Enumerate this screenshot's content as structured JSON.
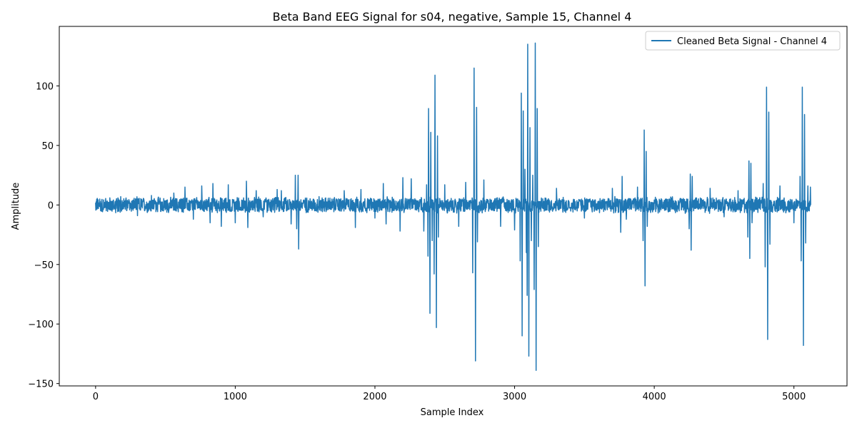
{
  "chart_data": {
    "type": "line",
    "title": "Beta Band EEG Signal for s04, negative, Sample 15, Channel 4",
    "xlabel": "Sample Index",
    "ylabel": "Amplitude",
    "xlim": [
      -260,
      5380
    ],
    "ylim": [
      -152,
      150
    ],
    "xticks": [
      0,
      1000,
      2000,
      3000,
      4000,
      5000
    ],
    "yticks": [
      -150,
      -100,
      -50,
      0,
      50,
      100
    ],
    "grid": false,
    "legend_position": "upper right",
    "series": [
      {
        "name": "Cleaned Beta Signal - Channel 4",
        "color": "#1f77b4",
        "n_samples": 5120,
        "baseline_amplitude": 6,
        "events": [
          {
            "x": 20,
            "y": -3
          },
          {
            "x": 30,
            "y": 5
          },
          {
            "x": 100,
            "y": -4
          },
          {
            "x": 180,
            "y": 7
          },
          {
            "x": 300,
            "y": -9
          },
          {
            "x": 400,
            "y": 8
          },
          {
            "x": 560,
            "y": 10
          },
          {
            "x": 640,
            "y": 15
          },
          {
            "x": 700,
            "y": -12
          },
          {
            "x": 760,
            "y": 16
          },
          {
            "x": 820,
            "y": -15
          },
          {
            "x": 840,
            "y": 18
          },
          {
            "x": 900,
            "y": -18
          },
          {
            "x": 950,
            "y": 17
          },
          {
            "x": 1000,
            "y": -15
          },
          {
            "x": 1080,
            "y": 20
          },
          {
            "x": 1090,
            "y": -19
          },
          {
            "x": 1150,
            "y": 12
          },
          {
            "x": 1200,
            "y": -10
          },
          {
            "x": 1300,
            "y": 13
          },
          {
            "x": 1330,
            "y": 12
          },
          {
            "x": 1400,
            "y": -16
          },
          {
            "x": 1430,
            "y": 25
          },
          {
            "x": 1440,
            "y": -20
          },
          {
            "x": 1450,
            "y": 25
          },
          {
            "x": 1455,
            "y": -37
          },
          {
            "x": 1600,
            "y": 7
          },
          {
            "x": 1780,
            "y": 12
          },
          {
            "x": 1860,
            "y": -19
          },
          {
            "x": 1900,
            "y": 13
          },
          {
            "x": 2000,
            "y": -11
          },
          {
            "x": 2060,
            "y": 18
          },
          {
            "x": 2080,
            "y": -16
          },
          {
            "x": 2180,
            "y": -22
          },
          {
            "x": 2200,
            "y": 23
          },
          {
            "x": 2260,
            "y": 22
          },
          {
            "x": 2350,
            "y": -22
          },
          {
            "x": 2370,
            "y": 17
          },
          {
            "x": 2380,
            "y": -43
          },
          {
            "x": 2385,
            "y": 81
          },
          {
            "x": 2395,
            "y": -91
          },
          {
            "x": 2400,
            "y": 61
          },
          {
            "x": 2410,
            "y": -30
          },
          {
            "x": 2425,
            "y": -58
          },
          {
            "x": 2430,
            "y": 109
          },
          {
            "x": 2440,
            "y": -103
          },
          {
            "x": 2448,
            "y": 58
          },
          {
            "x": 2455,
            "y": -27
          },
          {
            "x": 2500,
            "y": 17
          },
          {
            "x": 2600,
            "y": -18
          },
          {
            "x": 2650,
            "y": 19
          },
          {
            "x": 2700,
            "y": -57
          },
          {
            "x": 2710,
            "y": 115
          },
          {
            "x": 2720,
            "y": -131
          },
          {
            "x": 2728,
            "y": 82
          },
          {
            "x": 2735,
            "y": -31
          },
          {
            "x": 2780,
            "y": 21
          },
          {
            "x": 2900,
            "y": -18
          },
          {
            "x": 3000,
            "y": -21
          },
          {
            "x": 3040,
            "y": -47
          },
          {
            "x": 3048,
            "y": 94
          },
          {
            "x": 3055,
            "y": -110
          },
          {
            "x": 3062,
            "y": 79
          },
          {
            "x": 3075,
            "y": 30
          },
          {
            "x": 3085,
            "y": -40
          },
          {
            "x": 3090,
            "y": -76
          },
          {
            "x": 3095,
            "y": 135
          },
          {
            "x": 3102,
            "y": -127
          },
          {
            "x": 3110,
            "y": 65
          },
          {
            "x": 3120,
            "y": -30
          },
          {
            "x": 3130,
            "y": 25
          },
          {
            "x": 3140,
            "y": -71
          },
          {
            "x": 3148,
            "y": 136
          },
          {
            "x": 3155,
            "y": -139
          },
          {
            "x": 3162,
            "y": 81
          },
          {
            "x": 3170,
            "y": -35
          },
          {
            "x": 3300,
            "y": 14
          },
          {
            "x": 3500,
            "y": -11
          },
          {
            "x": 3700,
            "y": 14
          },
          {
            "x": 3760,
            "y": -23
          },
          {
            "x": 3770,
            "y": 24
          },
          {
            "x": 3800,
            "y": -12
          },
          {
            "x": 3880,
            "y": 15
          },
          {
            "x": 3920,
            "y": -30
          },
          {
            "x": 3928,
            "y": 63
          },
          {
            "x": 3935,
            "y": -68
          },
          {
            "x": 3942,
            "y": 45
          },
          {
            "x": 3950,
            "y": -18
          },
          {
            "x": 4250,
            "y": -20
          },
          {
            "x": 4258,
            "y": 26
          },
          {
            "x": 4265,
            "y": -38
          },
          {
            "x": 4272,
            "y": 24
          },
          {
            "x": 4400,
            "y": 14
          },
          {
            "x": 4500,
            "y": -10
          },
          {
            "x": 4600,
            "y": 12
          },
          {
            "x": 4670,
            "y": -27
          },
          {
            "x": 4678,
            "y": 37
          },
          {
            "x": 4685,
            "y": -45
          },
          {
            "x": 4692,
            "y": 35
          },
          {
            "x": 4700,
            "y": -15
          },
          {
            "x": 4780,
            "y": 18
          },
          {
            "x": 4795,
            "y": -52
          },
          {
            "x": 4805,
            "y": 99
          },
          {
            "x": 4812,
            "y": -113
          },
          {
            "x": 4820,
            "y": 78
          },
          {
            "x": 4828,
            "y": -33
          },
          {
            "x": 4900,
            "y": 16
          },
          {
            "x": 5000,
            "y": -15
          },
          {
            "x": 5045,
            "y": 24
          },
          {
            "x": 5052,
            "y": -47
          },
          {
            "x": 5060,
            "y": 99
          },
          {
            "x": 5068,
            "y": -118
          },
          {
            "x": 5076,
            "y": 76
          },
          {
            "x": 5085,
            "y": -32
          },
          {
            "x": 5100,
            "y": 16
          },
          {
            "x": 5110,
            "y": -5
          },
          {
            "x": 5118,
            "y": 15
          },
          {
            "x": 5120,
            "y": 0
          }
        ]
      }
    ]
  }
}
